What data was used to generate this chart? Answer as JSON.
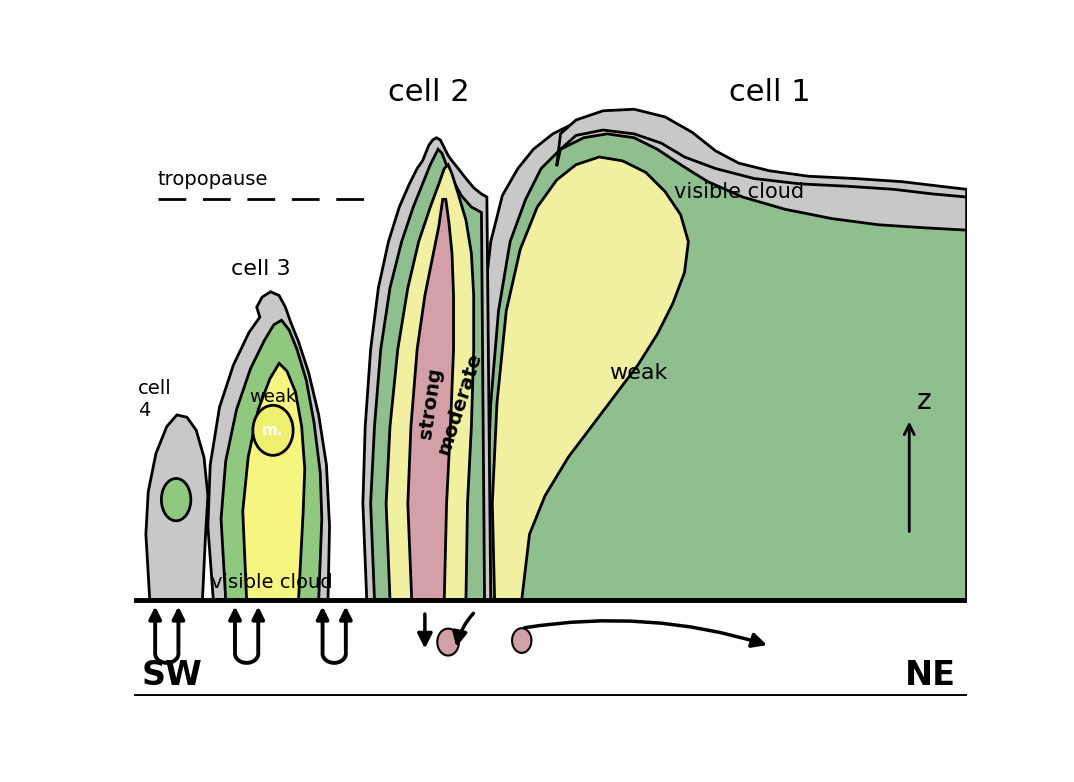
{
  "bg_color": "#ffffff",
  "cell1_label": "cell 1",
  "cell2_label": "cell 2",
  "cell3_label": "cell 3",
  "cell4_label": "cell\n4",
  "tropopause_label": "tropopause",
  "visible_cloud_label1": "visible cloud",
  "visible_cloud_label2": "visible cloud",
  "strong_label": "strong",
  "moderate_label": "moderate",
  "weak_label1": "weak",
  "weak_label2": "weak",
  "m_label": "m.",
  "sw_label": "SW",
  "ne_label": "NE",
  "z_label": "z",
  "c_gray": "#c8c8c8",
  "c_green": "#8fbe8f",
  "c_yellow": "#f0f0a0",
  "c_pink": "#d4a0a8",
  "c_green2": "#90c880",
  "c_yellow2": "#f5f580",
  "lw": 2.0
}
